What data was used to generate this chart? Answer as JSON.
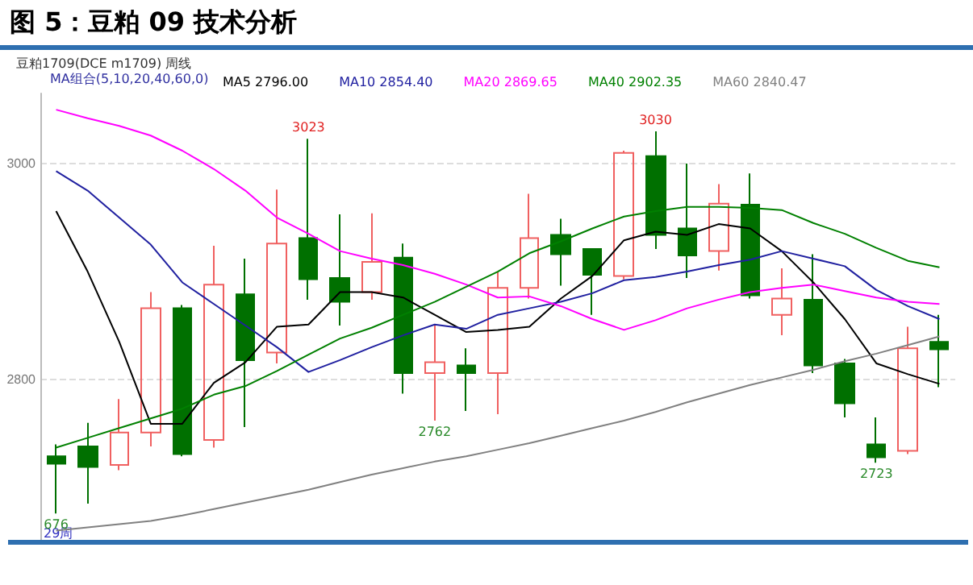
{
  "chart_data": {
    "type": "candlestick",
    "title": "图 5：豆粕 09 技术分析",
    "subtitle": "豆粕1709(DCE m1709) 周线",
    "legend_title": "MA组合(5,10,20,40,60,0)",
    "categories": [
      null,
      null,
      null,
      null,
      null,
      null,
      null,
      null,
      null,
      null,
      null,
      null,
      null,
      null,
      null,
      null,
      null,
      null,
      null,
      null,
      null,
      null,
      null,
      null,
      null,
      null,
      null,
      null,
      null
    ],
    "ylim": [
      2650,
      3065
    ],
    "yticks": [
      2800,
      3000
    ],
    "grid": "y",
    "legend": "top left",
    "line_style": "solid",
    "marker": "none",
    "annotations": [
      {
        "text": "3023",
        "y": 3023
      },
      {
        "text": "3030",
        "y": 3030
      },
      {
        "text": "2762",
        "y": 2762
      },
      {
        "text": "2723",
        "y": 2723
      },
      {
        "text": "676",
        "y": 2676
      },
      "29周"
    ],
    "ohlc": [
      [
        2729,
        2740,
        2676,
        2722
      ],
      [
        2738,
        2760,
        2685,
        2719
      ],
      [
        2721,
        2782,
        2716,
        2751
      ],
      [
        2751,
        2881,
        2738,
        2866
      ],
      [
        2866,
        2869,
        2729,
        2731
      ],
      [
        2744,
        2924,
        2737,
        2888
      ],
      [
        2879,
        2912,
        2756,
        2818
      ],
      [
        2825,
        2976,
        2815,
        2926
      ],
      [
        2931,
        3023,
        2874,
        2893
      ],
      [
        2894,
        2953,
        2850,
        2872
      ],
      [
        2881,
        2954,
        2874,
        2909
      ],
      [
        2913,
        2926,
        2787,
        2806
      ],
      [
        2806,
        2850,
        2762,
        2816
      ],
      [
        2813,
        2829,
        2771,
        2806
      ],
      [
        2806,
        2900,
        2768,
        2885
      ],
      [
        2885,
        2972,
        2875,
        2931
      ],
      [
        2934,
        2949,
        2887,
        2916
      ],
      [
        2921,
        2921,
        2860,
        2897
      ],
      [
        2896,
        3012,
        2893,
        3010
      ],
      [
        3007,
        3030,
        2921,
        2934
      ],
      [
        2940,
        3000,
        2894,
        2915
      ],
      [
        2919,
        2981,
        2901,
        2963
      ],
      [
        2962,
        2991,
        2875,
        2878
      ],
      [
        2860,
        2903,
        2841,
        2875
      ],
      [
        2874,
        2916,
        2806,
        2813
      ],
      [
        2815,
        2819,
        2765,
        2778
      ],
      [
        2740,
        2765,
        2723,
        2728
      ],
      [
        2734,
        2849,
        2731,
        2829
      ],
      [
        2835,
        2860,
        2793,
        2828
      ]
    ],
    "colors": [
      "#007000",
      "#007000",
      "#f06060",
      "#f06060",
      "#007000",
      "#f06060",
      "#007000",
      "#f06060",
      "#007000",
      "#007000",
      "#f06060",
      "#007000",
      "#f06060",
      "#007000",
      "#f06060",
      "#f06060",
      "#007000",
      "#007000",
      "#f06060",
      "#007000",
      "#007000",
      "#f06060",
      "#007000",
      "#f06060",
      "#007000",
      "#007000",
      "#007000",
      "#f06060",
      "#007000"
    ],
    "series": [
      {
        "type": "line",
        "name": "MA5 2796.00",
        "color": "#000000",
        "values": [
          2956,
          2900,
          2835,
          2759,
          2759,
          2797,
          2816,
          2849,
          2851,
          2881,
          2881,
          2876,
          2860,
          2844,
          2846,
          2849,
          2875,
          2896,
          2929,
          2937,
          2934,
          2944,
          2940,
          2919,
          2890,
          2856,
          2815,
          2805,
          2796
        ]
      },
      {
        "type": "line",
        "name": "MA10 2854.40",
        "color": "#2020a0",
        "values": [
          2993,
          2975,
          2950,
          2925,
          2890,
          2870,
          2850,
          2830,
          2807,
          2818,
          2830,
          2841,
          2851,
          2847,
          2860,
          2866,
          2872,
          2880,
          2892,
          2895,
          2900,
          2906,
          2911,
          2919,
          2912,
          2905,
          2883,
          2868,
          2856
        ]
      },
      {
        "type": "line",
        "name": "MA20 2869.65",
        "color": "#ff00ff",
        "values": [
          3050,
          3042,
          3035,
          3026,
          3012,
          2995,
          2975,
          2950,
          2935,
          2919,
          2912,
          2906,
          2898,
          2888,
          2876,
          2877,
          2868,
          2856,
          2846,
          2855,
          2866,
          2874,
          2881,
          2885,
          2888,
          2882,
          2876,
          2872,
          2870
        ]
      },
      {
        "type": "line",
        "name": "MA40 2902.35",
        "color": "#008000",
        "values": [
          2737,
          2746,
          2755,
          2764,
          2773,
          2786,
          2794,
          2808,
          2823,
          2838,
          2848,
          2860,
          2872,
          2886,
          2900,
          2917,
          2928,
          2940,
          2951,
          2956,
          2960,
          2960,
          2959,
          2957,
          2945,
          2935,
          2922,
          2910,
          2904
        ]
      },
      {
        "type": "line",
        "name": "MA60 2840.47",
        "color": "#808080",
        "values": [
          2660,
          2663,
          2666,
          2669,
          2674,
          2680,
          2686,
          2692,
          2698,
          2705,
          2712,
          2718,
          2724,
          2729,
          2735,
          2741,
          2748,
          2755,
          2762,
          2770,
          2779,
          2787,
          2795,
          2802,
          2809,
          2817,
          2824,
          2832,
          2840
        ]
      }
    ]
  }
}
